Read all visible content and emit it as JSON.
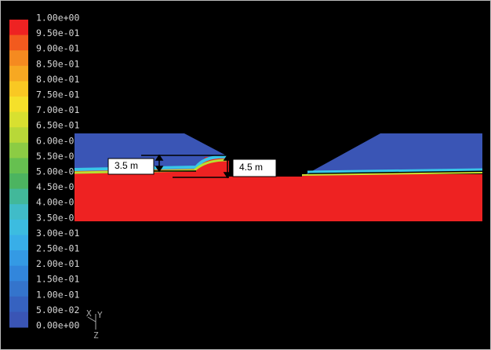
{
  "colorbar": {
    "labels": [
      "1.00e+00",
      "9.50e-01",
      "9.00e-01",
      "8.50e-01",
      "8.00e-01",
      "7.50e-01",
      "7.00e-01",
      "6.50e-01",
      "6.00e-01",
      "5.50e-01",
      "5.00e-01",
      "4.50e-01",
      "4.00e-01",
      "3.50e-01",
      "3.00e-01",
      "2.50e-01",
      "2.00e-01",
      "1.50e-01",
      "1.00e-01",
      "5.00e-02",
      "0.00e+00"
    ]
  },
  "annotations": {
    "left": "3.5 m",
    "right": "4.5 m"
  },
  "axes": {
    "x": "X",
    "y": "Y",
    "z": "Z"
  }
}
